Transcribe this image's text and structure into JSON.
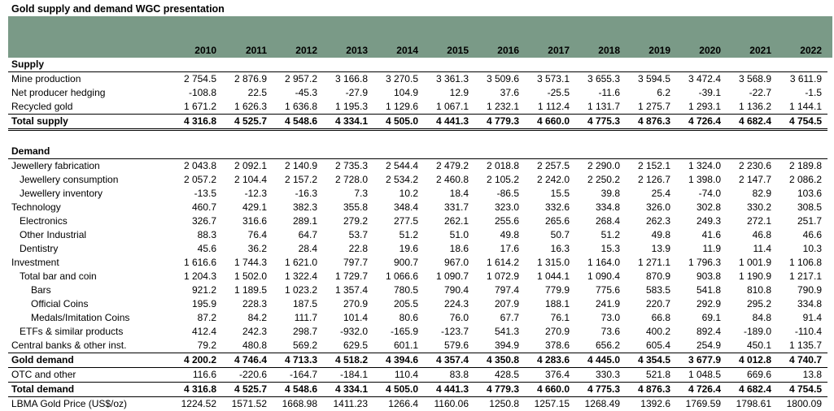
{
  "title": "Gold supply and demand WGC presentation",
  "years": [
    "2010",
    "2011",
    "2012",
    "2013",
    "2014",
    "2015",
    "2016",
    "2017",
    "2018",
    "2019",
    "2020",
    "2021",
    "2022"
  ],
  "rows": [
    {
      "label": "Supply",
      "type": "section",
      "values": []
    },
    {
      "label": "Mine production",
      "indent": 0,
      "values": [
        "2 754.5",
        "2 876.9",
        "2 957.2",
        "3 166.8",
        "3 270.5",
        "3 361.3",
        "3 509.6",
        "3 573.1",
        "3 655.3",
        "3 594.5",
        "3 472.4",
        "3 568.9",
        "3 611.9"
      ]
    },
    {
      "label": "Net producer hedging",
      "indent": 0,
      "values": [
        "-108.8",
        "22.5",
        "-45.3",
        "-27.9",
        "104.9",
        "12.9",
        "37.6",
        "-25.5",
        "-11.6",
        "6.2",
        "-39.1",
        "-22.7",
        "-1.5"
      ]
    },
    {
      "label": "Recycled gold",
      "indent": 0,
      "values": [
        "1 671.2",
        "1 626.3",
        "1 636.8",
        "1 195.3",
        "1 129.6",
        "1 067.1",
        "1 232.1",
        "1 112.4",
        "1 131.7",
        "1 275.7",
        "1 293.1",
        "1 136.2",
        "1 144.1"
      ]
    },
    {
      "label": "Total supply",
      "type": "total",
      "values": [
        "4 316.8",
        "4 525.7",
        "4 548.6",
        "4 334.1",
        "4 505.0",
        "4 441.3",
        "4 779.3",
        "4 660.0",
        "4 775.3",
        "4 876.3",
        "4 726.4",
        "4 682.4",
        "4 754.5"
      ]
    },
    {
      "label": "",
      "type": "spacer",
      "values": []
    },
    {
      "label": "Demand",
      "type": "section",
      "values": []
    },
    {
      "label": "Jewellery fabrication",
      "indent": 0,
      "values": [
        "2 043.8",
        "2 092.1",
        "2 140.9",
        "2 735.3",
        "2 544.4",
        "2 479.2",
        "2 018.8",
        "2 257.5",
        "2 290.0",
        "2 152.1",
        "1 324.0",
        "2 230.6",
        "2 189.8"
      ]
    },
    {
      "label": "Jewellery consumption",
      "indent": 1,
      "values": [
        "2 057.2",
        "2 104.4",
        "2 157.2",
        "2 728.0",
        "2 534.2",
        "2 460.8",
        "2 105.2",
        "2 242.0",
        "2 250.2",
        "2 126.7",
        "1 398.0",
        "2 147.7",
        "2 086.2"
      ]
    },
    {
      "label": "Jewellery inventory",
      "indent": 1,
      "values": [
        "-13.5",
        "-12.3",
        "-16.3",
        "7.3",
        "10.2",
        "18.4",
        "-86.5",
        "15.5",
        "39.8",
        "25.4",
        "-74.0",
        "82.9",
        "103.6"
      ]
    },
    {
      "label": "Technology",
      "indent": 0,
      "values": [
        "460.7",
        "429.1",
        "382.3",
        "355.8",
        "348.4",
        "331.7",
        "323.0",
        "332.6",
        "334.8",
        "326.0",
        "302.8",
        "330.2",
        "308.5"
      ]
    },
    {
      "label": "Electronics",
      "indent": 1,
      "values": [
        "326.7",
        "316.6",
        "289.1",
        "279.2",
        "277.5",
        "262.1",
        "255.6",
        "265.6",
        "268.4",
        "262.3",
        "249.3",
        "272.1",
        "251.7"
      ]
    },
    {
      "label": "Other Industrial",
      "indent": 1,
      "values": [
        "88.3",
        "76.4",
        "64.7",
        "53.7",
        "51.2",
        "51.0",
        "49.8",
        "50.7",
        "51.2",
        "49.8",
        "41.6",
        "46.8",
        "46.6"
      ]
    },
    {
      "label": "Dentistry",
      "indent": 1,
      "values": [
        "45.6",
        "36.2",
        "28.4",
        "22.8",
        "19.6",
        "18.6",
        "17.6",
        "16.3",
        "15.3",
        "13.9",
        "11.9",
        "11.4",
        "10.3"
      ]
    },
    {
      "label": "Investment",
      "indent": 0,
      "values": [
        "1 616.6",
        "1 744.3",
        "1 621.0",
        "797.7",
        "900.7",
        "967.0",
        "1 614.2",
        "1 315.0",
        "1 164.0",
        "1 271.1",
        "1 796.3",
        "1 001.9",
        "1 106.8"
      ]
    },
    {
      "label": "Total bar and coin",
      "indent": 1,
      "values": [
        "1 204.3",
        "1 502.0",
        "1 322.4",
        "1 729.7",
        "1 066.6",
        "1 090.7",
        "1 072.9",
        "1 044.1",
        "1 090.4",
        "870.9",
        "903.8",
        "1 190.9",
        "1 217.1"
      ]
    },
    {
      "label": "Bars",
      "indent": 2,
      "values": [
        "921.2",
        "1 189.5",
        "1 023.2",
        "1 357.4",
        "780.5",
        "790.4",
        "797.4",
        "779.9",
        "775.6",
        "583.5",
        "541.8",
        "810.8",
        "790.9"
      ]
    },
    {
      "label": "Official Coins",
      "indent": 2,
      "values": [
        "195.9",
        "228.3",
        "187.5",
        "270.9",
        "205.5",
        "224.3",
        "207.9",
        "188.1",
        "241.9",
        "220.7",
        "292.9",
        "295.2",
        "334.8"
      ]
    },
    {
      "label": "Medals/Imitation Coins",
      "indent": 2,
      "values": [
        "87.2",
        "84.2",
        "111.7",
        "101.4",
        "80.6",
        "76.0",
        "67.7",
        "76.1",
        "73.0",
        "66.8",
        "69.1",
        "84.8",
        "91.4"
      ]
    },
    {
      "label": "ETFs & similar products",
      "indent": 1,
      "values": [
        "412.4",
        "242.3",
        "298.7",
        "-932.0",
        "-165.9",
        "-123.7",
        "541.3",
        "270.9",
        "73.6",
        "400.2",
        "892.4",
        "-189.0",
        "-110.4"
      ]
    },
    {
      "label": "Central banks & other inst.",
      "indent": 0,
      "values": [
        "79.2",
        "480.8",
        "569.2",
        "629.5",
        "601.1",
        "579.6",
        "394.9",
        "378.6",
        "656.2",
        "605.4",
        "254.9",
        "450.1",
        "1 135.7"
      ]
    },
    {
      "label": "Gold demand",
      "type": "total",
      "values": [
        "4 200.2",
        "4 746.4",
        "4 713.3",
        "4 518.2",
        "4 394.6",
        "4 357.4",
        "4 350.8",
        "4 283.6",
        "4 445.0",
        "4 354.5",
        "3 677.9",
        "4 012.8",
        "4 740.7"
      ]
    },
    {
      "label": "OTC and other",
      "indent": 0,
      "values": [
        "116.6",
        "-220.6",
        "-164.7",
        "-184.1",
        "110.4",
        "83.8",
        "428.5",
        "376.4",
        "330.3",
        "521.8",
        "1 048.5",
        "669.6",
        "13.8"
      ]
    },
    {
      "label": "Total demand",
      "type": "total",
      "values": [
        "4 316.8",
        "4 525.7",
        "4 548.6",
        "4 334.1",
        "4 505.0",
        "4 441.3",
        "4 779.3",
        "4 660.0",
        "4 775.3",
        "4 876.3",
        "4 726.4",
        "4 682.4",
        "4 754.5"
      ]
    },
    {
      "label": "LBMA Gold Price (US$/oz)",
      "type": "last",
      "values": [
        "1224.52",
        "1571.52",
        "1668.98",
        "1411.23",
        "1266.4",
        "1160.06",
        "1250.8",
        "1257.15",
        "1268.49",
        "1392.6",
        "1769.59",
        "1798.61",
        "1800.09"
      ]
    }
  ]
}
